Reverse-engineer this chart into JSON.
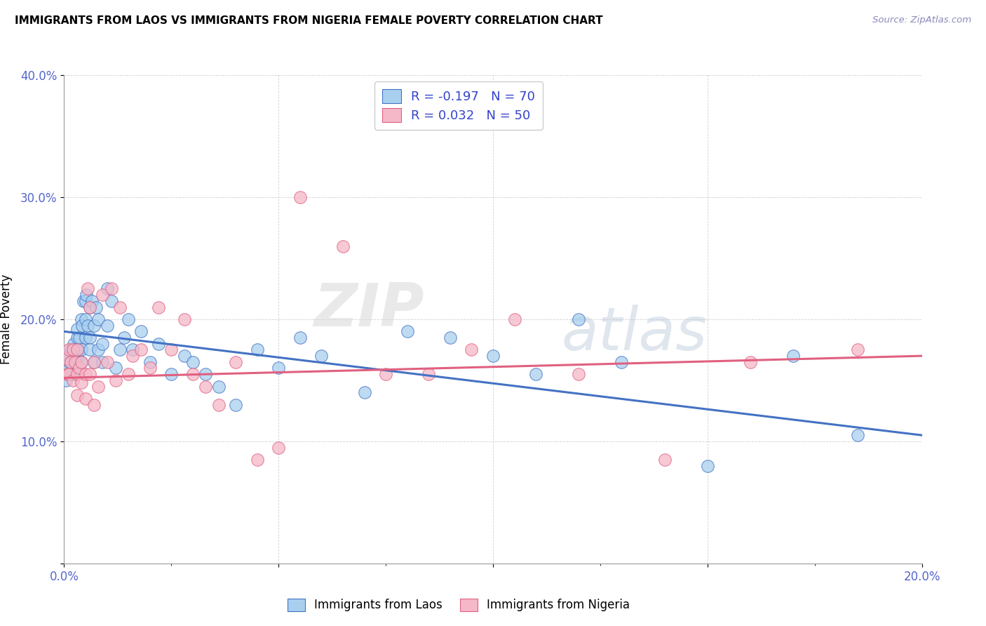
{
  "title": "IMMIGRANTS FROM LAOS VS IMMIGRANTS FROM NIGERIA FEMALE POVERTY CORRELATION CHART",
  "source": "Source: ZipAtlas.com",
  "ylabel": "Female Poverty",
  "x_min": 0.0,
  "x_max": 0.2,
  "y_min": 0.0,
  "y_max": 0.4,
  "laos_color": "#A8D0EE",
  "nigeria_color": "#F5B8C8",
  "laos_R": -0.197,
  "laos_N": 70,
  "nigeria_R": 0.032,
  "nigeria_N": 50,
  "trend_laos_color": "#4472C4",
  "trend_nigeria_color": "#E06080",
  "watermark_zip": "ZIP",
  "watermark_atlas": "atlas",
  "laos_x": [
    0.0005,
    0.0008,
    0.001,
    0.001,
    0.0012,
    0.0015,
    0.0015,
    0.002,
    0.002,
    0.0022,
    0.0025,
    0.0025,
    0.003,
    0.003,
    0.003,
    0.003,
    0.0032,
    0.0035,
    0.004,
    0.004,
    0.004,
    0.0042,
    0.0045,
    0.005,
    0.005,
    0.005,
    0.0052,
    0.0055,
    0.006,
    0.006,
    0.006,
    0.0065,
    0.007,
    0.007,
    0.0075,
    0.008,
    0.008,
    0.009,
    0.009,
    0.01,
    0.01,
    0.011,
    0.012,
    0.013,
    0.014,
    0.015,
    0.016,
    0.018,
    0.02,
    0.022,
    0.025,
    0.028,
    0.03,
    0.033,
    0.036,
    0.04,
    0.045,
    0.05,
    0.055,
    0.06,
    0.07,
    0.08,
    0.09,
    0.1,
    0.11,
    0.12,
    0.13,
    0.15,
    0.17,
    0.185
  ],
  "laos_y": [
    0.15,
    0.16,
    0.155,
    0.17,
    0.165,
    0.175,
    0.155,
    0.175,
    0.165,
    0.18,
    0.17,
    0.155,
    0.185,
    0.168,
    0.192,
    0.172,
    0.175,
    0.185,
    0.165,
    0.175,
    0.2,
    0.195,
    0.215,
    0.185,
    0.2,
    0.215,
    0.22,
    0.195,
    0.185,
    0.21,
    0.175,
    0.215,
    0.165,
    0.195,
    0.21,
    0.175,
    0.2,
    0.165,
    0.18,
    0.225,
    0.195,
    0.215,
    0.16,
    0.175,
    0.185,
    0.2,
    0.175,
    0.19,
    0.165,
    0.18,
    0.155,
    0.17,
    0.165,
    0.155,
    0.145,
    0.13,
    0.175,
    0.16,
    0.185,
    0.17,
    0.14,
    0.19,
    0.185,
    0.17,
    0.155,
    0.2,
    0.165,
    0.08,
    0.17,
    0.105
  ],
  "nigeria_x": [
    0.0005,
    0.0008,
    0.001,
    0.001,
    0.0015,
    0.002,
    0.002,
    0.0025,
    0.003,
    0.003,
    0.003,
    0.0035,
    0.004,
    0.004,
    0.005,
    0.005,
    0.0055,
    0.006,
    0.006,
    0.007,
    0.007,
    0.008,
    0.009,
    0.01,
    0.011,
    0.012,
    0.013,
    0.015,
    0.016,
    0.018,
    0.02,
    0.022,
    0.025,
    0.028,
    0.03,
    0.033,
    0.036,
    0.04,
    0.045,
    0.05,
    0.055,
    0.065,
    0.075,
    0.085,
    0.095,
    0.105,
    0.12,
    0.14,
    0.16,
    0.185
  ],
  "nigeria_y": [
    0.168,
    0.155,
    0.175,
    0.155,
    0.165,
    0.175,
    0.15,
    0.165,
    0.155,
    0.138,
    0.175,
    0.16,
    0.148,
    0.165,
    0.135,
    0.155,
    0.225,
    0.155,
    0.21,
    0.13,
    0.165,
    0.145,
    0.22,
    0.165,
    0.225,
    0.15,
    0.21,
    0.155,
    0.17,
    0.175,
    0.16,
    0.21,
    0.175,
    0.2,
    0.155,
    0.145,
    0.13,
    0.165,
    0.085,
    0.095,
    0.3,
    0.26,
    0.155,
    0.155,
    0.175,
    0.2,
    0.155,
    0.085,
    0.165,
    0.175
  ],
  "trend_laos_x0": 0.0,
  "trend_laos_y0": 0.19,
  "trend_laos_x1": 0.2,
  "trend_laos_y1": 0.105,
  "trend_nigeria_x0": 0.0,
  "trend_nigeria_y0": 0.152,
  "trend_nigeria_x1": 0.2,
  "trend_nigeria_y1": 0.17
}
